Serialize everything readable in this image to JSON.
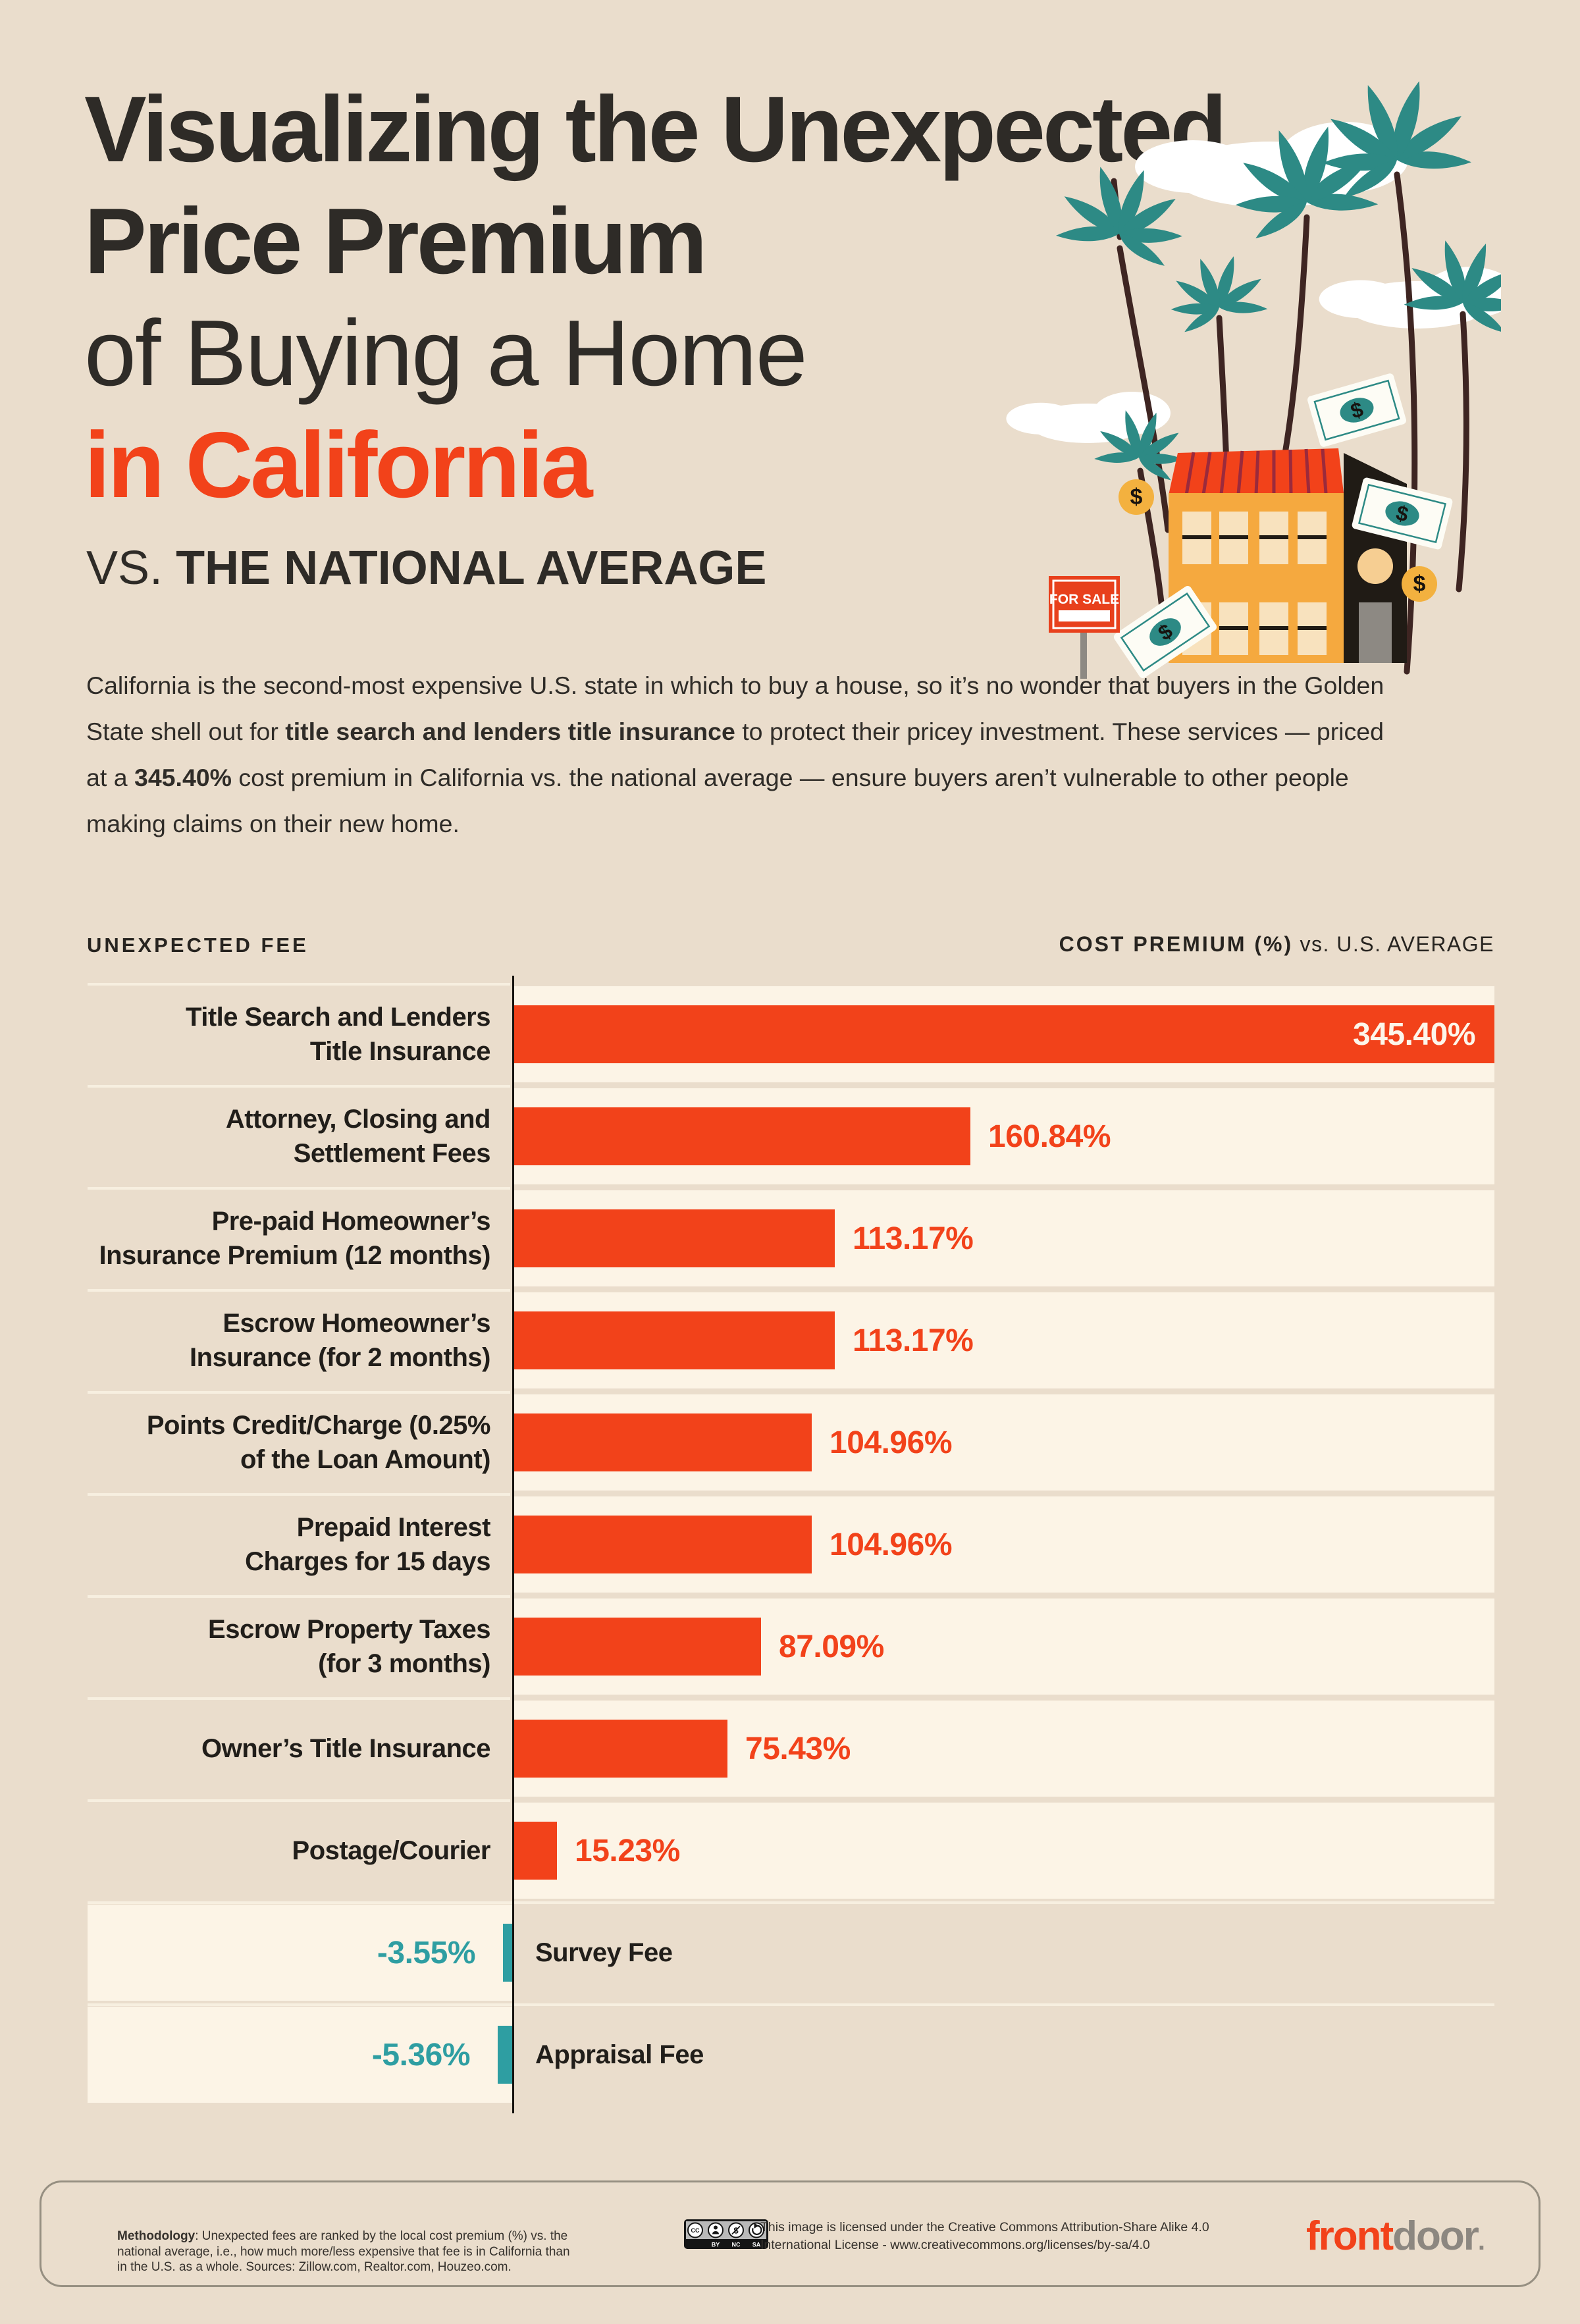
{
  "header": {
    "title_line1": "Visualizing the Unexpected",
    "title_line2": "Price Premium",
    "title_line3": "of Buying a Home",
    "title_line4": "in California",
    "subtitle_prefix": "VS. ",
    "subtitle_main": "THE NATIONAL AVERAGE"
  },
  "intro": {
    "segments": [
      {
        "text": "California is the second-most expensive U.S. state in which to buy a house, so it’s no wonder that buyers in the Golden State shell out for ",
        "bold": false
      },
      {
        "text": "title search and lenders title insurance",
        "bold": true
      },
      {
        "text": " to protect their pricey investment. These services — priced at a ",
        "bold": false
      },
      {
        "text": "345.40%",
        "bold": true
      },
      {
        "text": " cost premium in California vs. the national average — ensure buyers aren’t vulnerable to other people making claims on their new home.",
        "bold": false
      }
    ]
  },
  "chart_data": {
    "type": "bar",
    "orientation": "horizontal",
    "column_header_left": "UNEXPECTED FEE",
    "column_header_right_bold": "COST PREMIUM (%)",
    "column_header_right_regular": " vs. U.S. AVERAGE",
    "value_axis_max": 345.4,
    "bar_color_positive": "#F2421A",
    "bar_color_negative": "#2E9EA2",
    "row_band_color": "#FCF4E6",
    "categories": [
      "Title Search and Lenders Title Insurance",
      "Attorney, Closing and Settlement Fees",
      "Pre-paid Homeowner's Insurance Premium (12 months)",
      "Escrow Homeowner's Insurance (for 2 months)",
      "Points Credit/Charge (0.25% of the Loan Amount)",
      "Prepaid Interest Charges for 15 days",
      "Escrow Property Taxes (for 3 months)",
      "Owner's Title Insurance",
      "Postage/Courier",
      "Survey Fee",
      "Appraisal Fee"
    ],
    "values": [
      345.4,
      160.84,
      113.17,
      113.17,
      104.96,
      104.96,
      87.09,
      75.43,
      15.23,
      -3.55,
      -5.36
    ],
    "rows": [
      {
        "label_lines": [
          "Title Search and Lenders",
          "Title Insurance"
        ],
        "value": 345.4,
        "display": "345.40%"
      },
      {
        "label_lines": [
          "Attorney, Closing and",
          "Settlement Fees"
        ],
        "value": 160.84,
        "display": "160.84%"
      },
      {
        "label_lines": [
          "Pre-paid Homeowner’s",
          "Insurance Premium (12 months)"
        ],
        "value": 113.17,
        "display": "113.17%"
      },
      {
        "label_lines": [
          "Escrow Homeowner’s",
          "Insurance (for 2 months)"
        ],
        "value": 113.17,
        "display": "113.17%"
      },
      {
        "label_lines": [
          "Points Credit/Charge (0.25%",
          "of the Loan Amount)"
        ],
        "value": 104.96,
        "display": "104.96%"
      },
      {
        "label_lines": [
          "Prepaid Interest",
          "Charges for 15 days"
        ],
        "value": 104.96,
        "display": "104.96%"
      },
      {
        "label_lines": [
          "Escrow Property Taxes",
          "(for 3 months)"
        ],
        "value": 87.09,
        "display": "87.09%"
      },
      {
        "label_lines": [
          "Owner’s Title Insurance"
        ],
        "value": 75.43,
        "display": "75.43%"
      },
      {
        "label_lines": [
          "Postage/Courier"
        ],
        "value": 15.23,
        "display": "15.23%"
      },
      {
        "label_lines": [
          "Survey Fee"
        ],
        "value": -3.55,
        "display": "-3.55%"
      },
      {
        "label_lines": [
          "Appraisal Fee"
        ],
        "value": -5.36,
        "display": "-5.36%"
      }
    ]
  },
  "illustration": {
    "sign_text": "FOR SALE",
    "dollar": "$"
  },
  "footer": {
    "methodology_label": "Methodology",
    "methodology_text": ": Unexpected fees are ranked by the local cost premium (%) vs. the national average, i.e., how much more/less expensive that fee is in California than in the U.S. as a whole. Sources: Zillow.com, Realtor.com, Houzeo.com.",
    "license_line1": "This image is licensed under the Creative Commons Attribution-Share Alike 4.0",
    "license_line2": "International License - www.creativecommons.org/licenses/by-sa/4.0",
    "cc_badge": {
      "cc": "CC",
      "by": "BY",
      "nc": "NC",
      "sa": "SA"
    },
    "logo": {
      "front": "front",
      "door": "door",
      "mark": "."
    }
  }
}
